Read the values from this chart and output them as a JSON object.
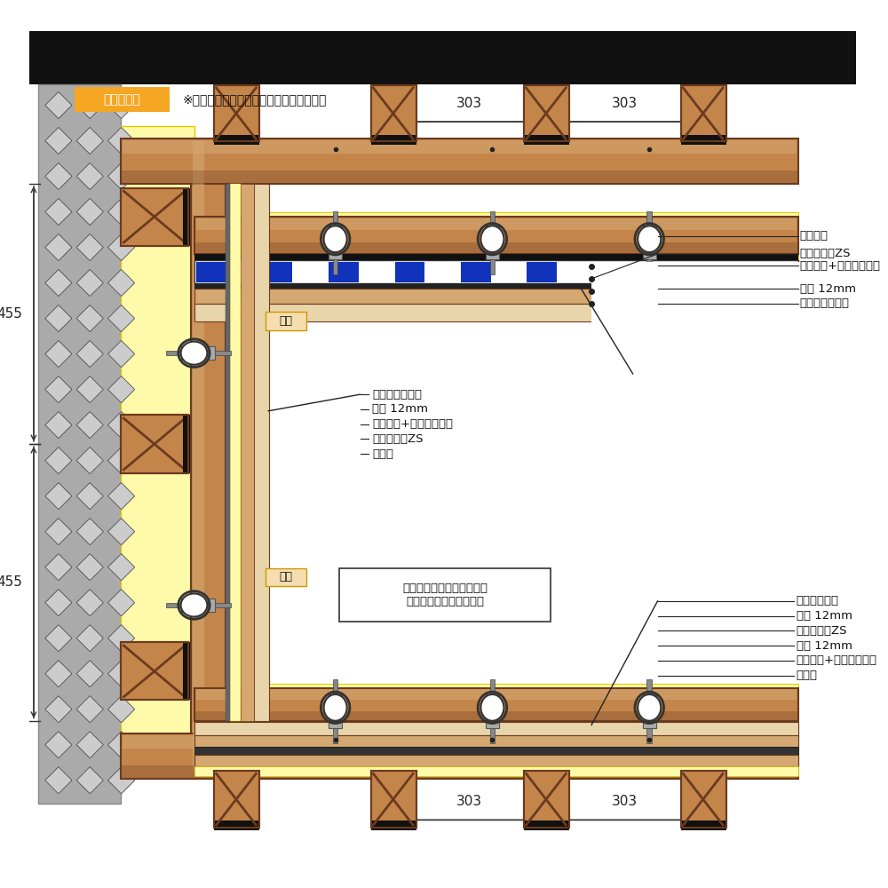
{
  "header_label": "施工参考例",
  "header_note": "※必要遮音性能により構造は異なります。",
  "header_label_color": "#F5A623",
  "wood_color": "#C4854A",
  "wood_light": "#D4A870",
  "wood_dark": "#6B3A1F",
  "insul_color": "#FFFAAA",
  "blue_color": "#1133BB",
  "dim_303": "303",
  "dim_455": "455",
  "ceiling_labels": [
    "天井下地",
    "防音マットZS",
    "音パット+グラスウール",
    "合板 12mm",
    "天井仕上ボード"
  ],
  "wall_labels": [
    "壁仕上げボード",
    "合板 12mm",
    "音パット+グラスウール",
    "防音マットZS",
    "壁下地"
  ],
  "floor_labels": [
    "床仕上ボード",
    "合板 12mm",
    "防音マットZS",
    "合板 12mm",
    "音パット+グラスウール",
    "床下地"
  ],
  "note_box": "壁・床・天井は縁を切る。\n（振動を伝えないため）",
  "kakubuchi": "廻縁",
  "habaki": "巾木"
}
